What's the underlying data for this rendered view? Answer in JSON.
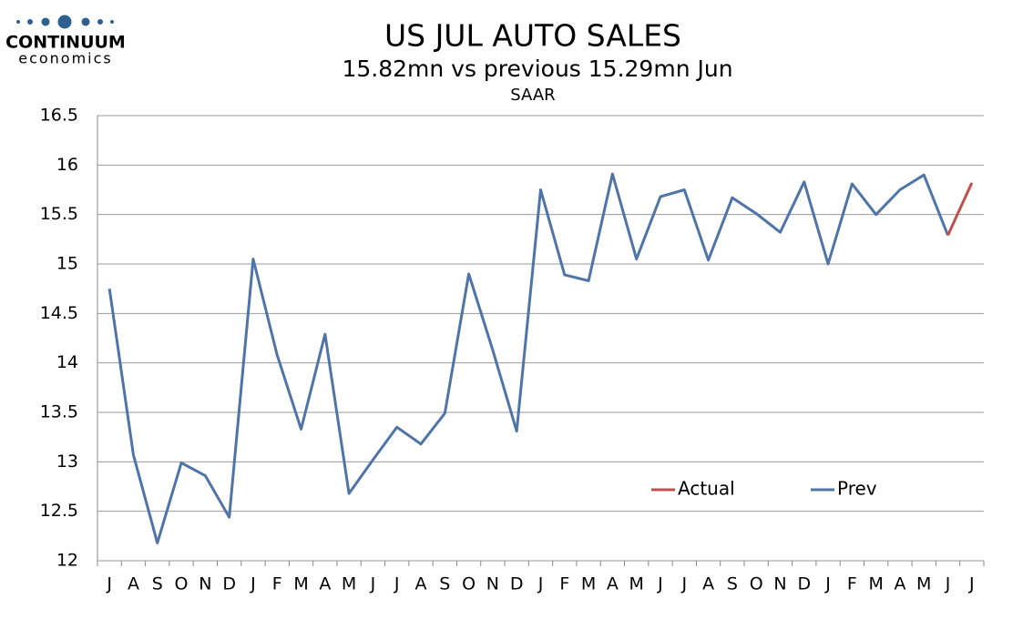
{
  "logo": {
    "name": "CONTINUUM",
    "tagline": "economics"
  },
  "chart_data": {
    "type": "line",
    "title": "US JUL AUTO SALES",
    "subtitle": "15.82mn vs previous 15.29mn Jun",
    "unit_label": "SAAR",
    "categories": [
      "J",
      "A",
      "S",
      "O",
      "N",
      "D",
      "J",
      "F",
      "M",
      "A",
      "M",
      "J",
      "J",
      "A",
      "S",
      "O",
      "N",
      "D",
      "J",
      "F",
      "M",
      "A",
      "M",
      "J",
      "J",
      "A",
      "S",
      "O",
      "N",
      "D",
      "J",
      "F",
      "M",
      "A",
      "M",
      "J",
      "J"
    ],
    "series": [
      {
        "name": "Actual",
        "color": "#c0504d",
        "values": [
          null,
          null,
          null,
          null,
          null,
          null,
          null,
          null,
          null,
          null,
          null,
          null,
          null,
          null,
          null,
          null,
          null,
          null,
          null,
          null,
          null,
          null,
          null,
          null,
          null,
          null,
          null,
          null,
          null,
          null,
          null,
          null,
          null,
          null,
          null,
          15.29,
          15.82
        ]
      },
      {
        "name": "Prev",
        "color": "#4f74a8",
        "values": [
          14.75,
          13.07,
          12.18,
          12.99,
          12.86,
          12.44,
          15.05,
          14.08,
          13.33,
          14.29,
          12.68,
          13.02,
          13.35,
          13.18,
          13.49,
          14.9,
          14.13,
          13.31,
          15.75,
          14.89,
          14.83,
          15.91,
          15.05,
          15.68,
          15.75,
          15.04,
          15.67,
          15.51,
          15.32,
          15.83,
          15.0,
          15.81,
          15.5,
          15.75,
          15.9,
          15.29,
          null
        ]
      }
    ],
    "ylim": [
      12,
      16.5
    ],
    "yticks": [
      12,
      12.5,
      13,
      13.5,
      14,
      14.5,
      15,
      15.5,
      16,
      16.5
    ],
    "grid": true,
    "legend": "lower-right"
  }
}
